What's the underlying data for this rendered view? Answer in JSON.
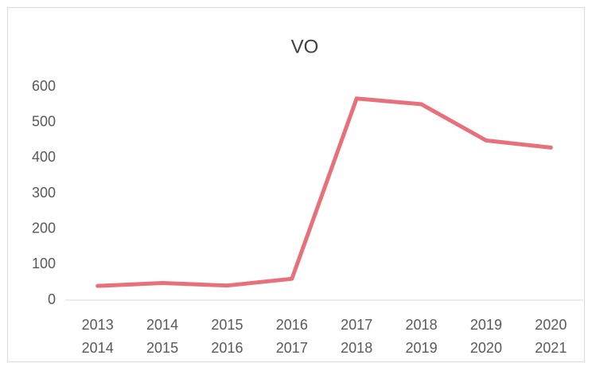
{
  "chart_data": {
    "type": "line",
    "title": "VO",
    "categories": [
      "2013\n2014",
      "2014\n2015",
      "2015\n2016",
      "2016\n2017",
      "2017\n2018",
      "2018\n2019",
      "2019\n2020",
      "2020\n2021"
    ],
    "series": [
      {
        "name": "VO",
        "color": "#e8707a",
        "values": [
          40,
          48,
          41,
          60,
          567,
          551,
          449,
          429
        ]
      }
    ],
    "ylim": [
      0,
      600
    ],
    "yticks": [
      0,
      100,
      200,
      300,
      400,
      500,
      600
    ],
    "grid": false
  }
}
